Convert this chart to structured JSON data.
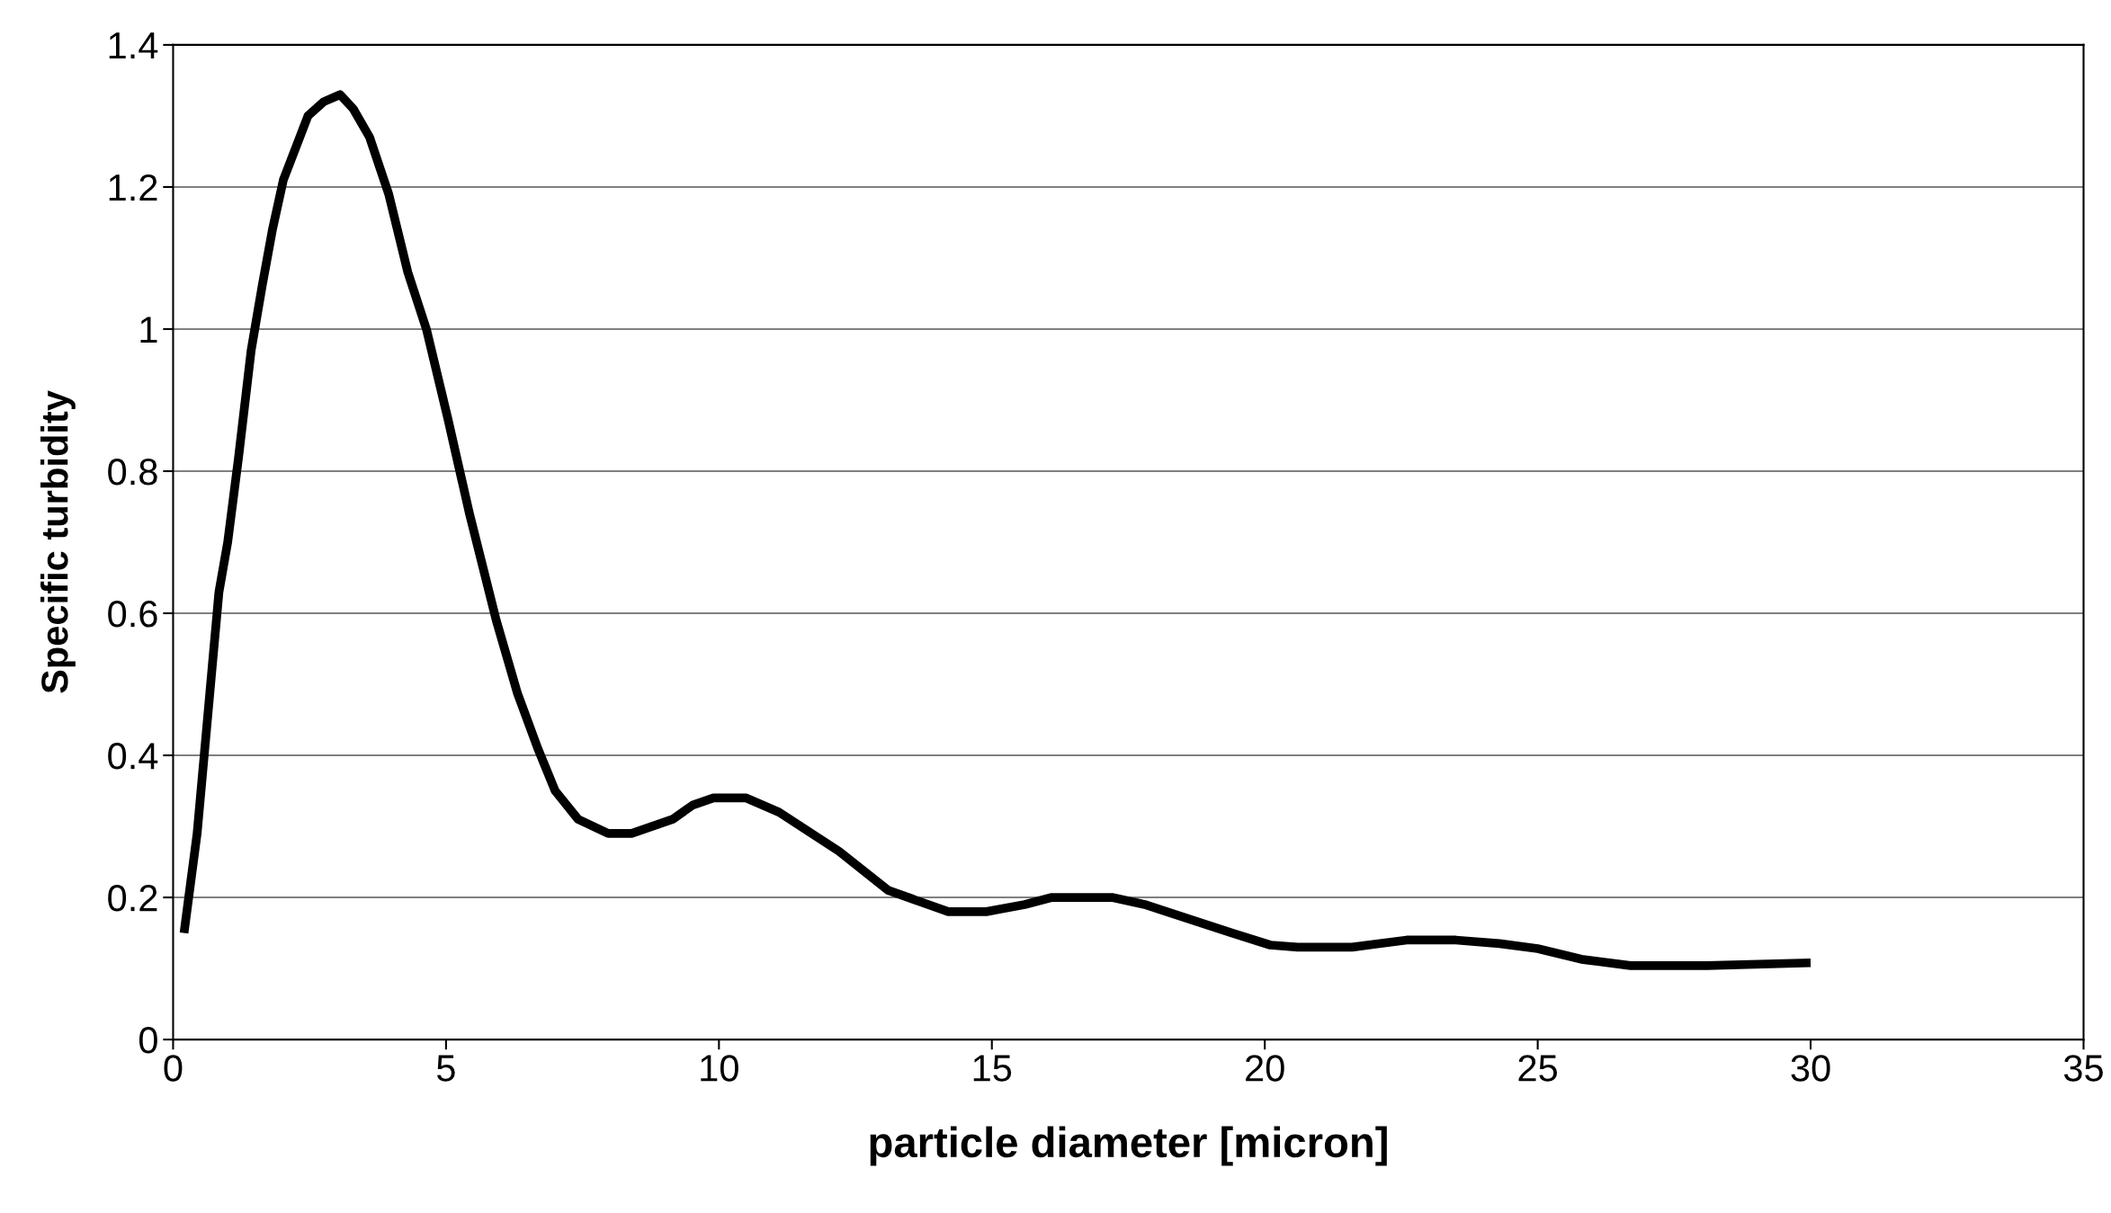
{
  "chart_data": {
    "type": "line",
    "xlabel": "particle diameter [micron]",
    "ylabel": "Specific turbidity",
    "xlim": [
      0,
      35
    ],
    "xticks": [
      0,
      5,
      10,
      15,
      20,
      25,
      30,
      35
    ],
    "ylim": [
      0,
      1.4
    ],
    "yticks": [
      0,
      0.2,
      0.4,
      0.6,
      0.8,
      1,
      1.2,
      1.4
    ],
    "grid": "y",
    "legend": false,
    "marker": "none",
    "line_style": "solid",
    "series": [
      {
        "color": "#000000",
        "x": [
          0.2,
          0.44,
          0.84,
          1.0,
          1.2,
          1.43,
          1.63,
          1.82,
          2.02,
          2.22,
          2.47,
          2.76,
          3.06,
          3.3,
          3.6,
          3.95,
          4.3,
          4.64,
          5.03,
          5.43,
          5.92,
          6.31,
          6.68,
          7.0,
          7.42,
          7.97,
          8.4,
          9.15,
          9.52,
          9.9,
          10.5,
          11.1,
          12.2,
          13.1,
          14.2,
          14.9,
          15.6,
          16.1,
          17.2,
          17.8,
          19.4,
          20.1,
          20.6,
          21.6,
          22.6,
          23.5,
          24.3,
          25.0,
          25.8,
          26.7,
          28.1,
          30.0
        ],
        "values": [
          0.15,
          0.29,
          0.63,
          0.7,
          0.82,
          0.97,
          1.06,
          1.14,
          1.21,
          1.25,
          1.3,
          1.32,
          1.33,
          1.31,
          1.27,
          1.19,
          1.08,
          1.0,
          0.875,
          0.74,
          0.59,
          0.487,
          0.41,
          0.35,
          0.31,
          0.29,
          0.29,
          0.31,
          0.33,
          0.34,
          0.34,
          0.32,
          0.265,
          0.21,
          0.18,
          0.18,
          0.19,
          0.2,
          0.2,
          0.19,
          0.15,
          0.133,
          0.13,
          0.13,
          0.14,
          0.14,
          0.135,
          0.128,
          0.113,
          0.104,
          0.104,
          0.108
        ]
      }
    ]
  }
}
